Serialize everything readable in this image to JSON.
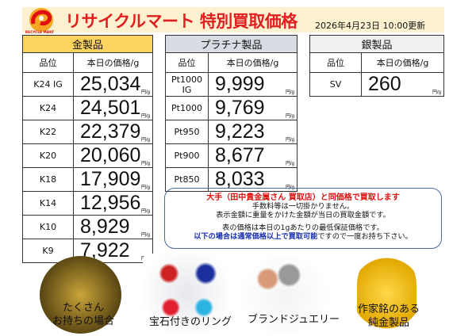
{
  "header": {
    "title": "リサイクルマート 特別買取価格",
    "logo_text": "RECYCLE MART",
    "updated": "2026年4月23日 10:00更新"
  },
  "unit": "円/g",
  "gold": {
    "title": "金製品",
    "col_grade": "品位",
    "col_price": "本日の価格/g",
    "rows": [
      {
        "grade": "K24 IG",
        "price": "25,034"
      },
      {
        "grade": "K24",
        "price": "24,501"
      },
      {
        "grade": "K22",
        "price": "22,379"
      },
      {
        "grade": "K20",
        "price": "20,060"
      },
      {
        "grade": "K18",
        "price": "17,909"
      },
      {
        "grade": "K14",
        "price": "12,956"
      },
      {
        "grade": "K10",
        "price": "8,929"
      },
      {
        "grade": "K9",
        "price": "7,922"
      }
    ]
  },
  "platinum": {
    "title": "プラチナ製品",
    "col_grade": "品位",
    "col_price": "本日の価格/g",
    "rows": [
      {
        "grade": "Pt1000 IG",
        "price": "9,999"
      },
      {
        "grade": "Pt1000",
        "price": "9,769"
      },
      {
        "grade": "Pt950",
        "price": "9,223"
      },
      {
        "grade": "Pt900",
        "price": "8,677"
      },
      {
        "grade": "Pt850",
        "price": "8,033"
      }
    ]
  },
  "silver": {
    "title": "銀製品",
    "col_grade": "品位",
    "col_price": "本日の価格/g",
    "rows": [
      {
        "grade": "SV",
        "price": "260"
      }
    ]
  },
  "notice": {
    "line1": "大手（田中貴金属さん 買取店）と同価格で買取します",
    "line2": "手数料等は一切掛かりません。",
    "line3": "表示金額に重量をかけた金額が当日の買取金額です。",
    "line4": "表の価格は本日の1gあたりの最低保証価格です。",
    "line5_blue": "以下の場合は通常価格以上で買取可能",
    "line5_rest": "ですので一度お持ち下さい。"
  },
  "features": [
    {
      "line1": "たくさん",
      "line2": "お持ちの場合"
    },
    {
      "line1": "宝石付きのリング"
    },
    {
      "line1": "ブランドジュエリー"
    },
    {
      "line1": "作家銘のある",
      "line2": "純金製品"
    }
  ]
}
